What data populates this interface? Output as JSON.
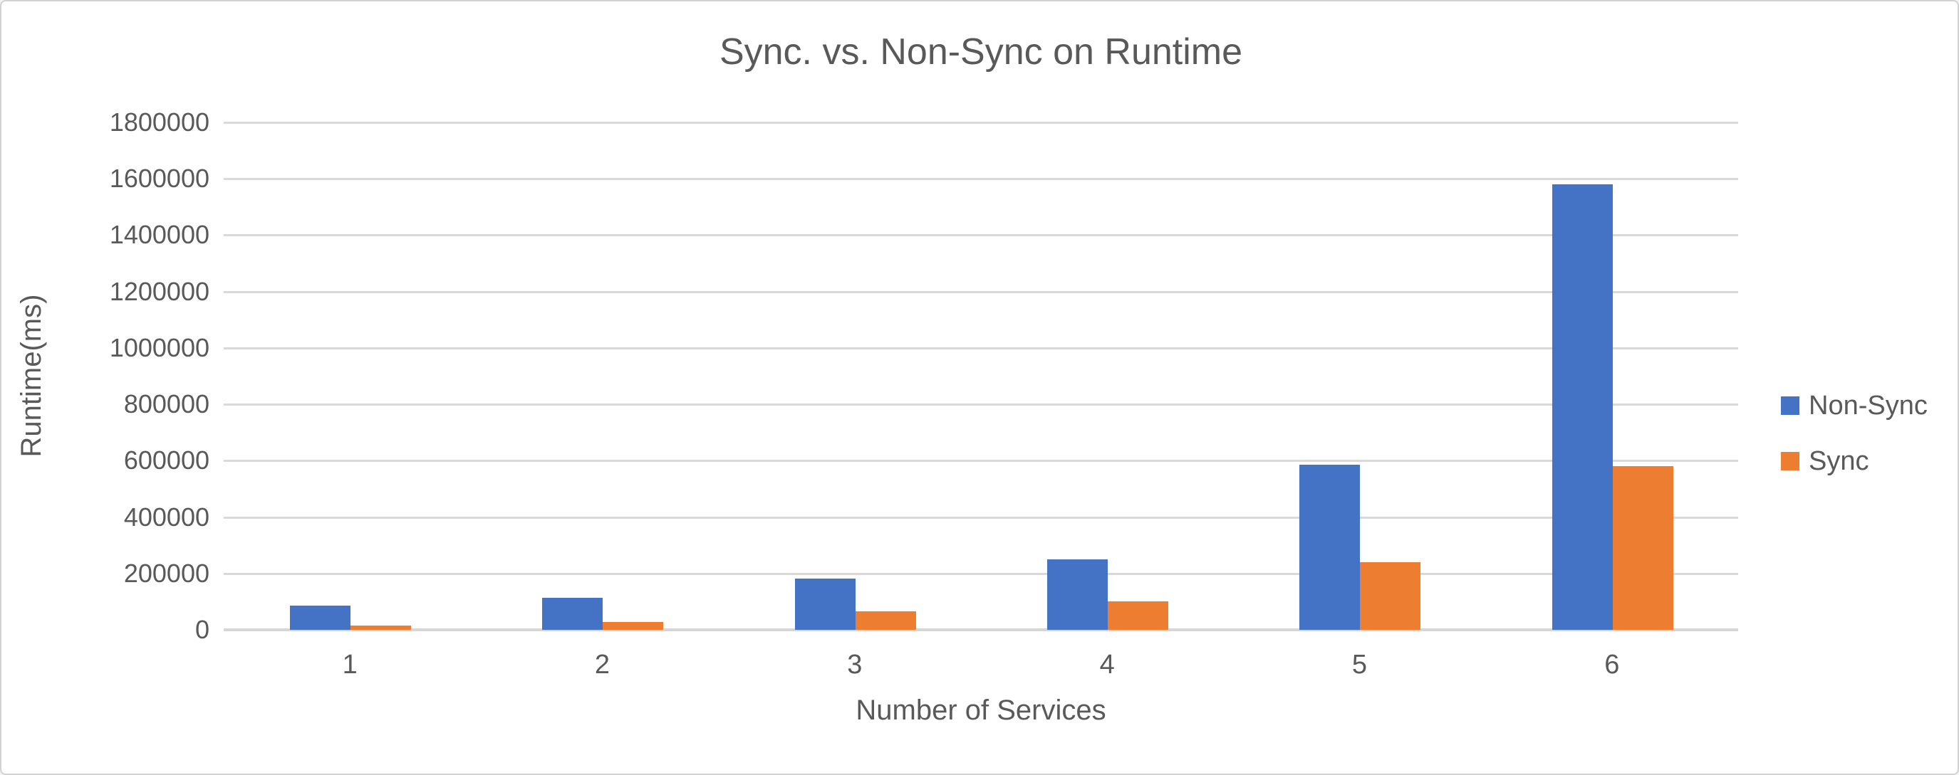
{
  "title": "Sync. vs. Non-Sync on Runtime",
  "chart_data": {
    "type": "bar",
    "title": "Sync. vs. Non-Sync on Runtime",
    "categories": [
      "1",
      "2",
      "3",
      "4",
      "5",
      "6"
    ],
    "series": [
      {
        "name": "Non-Sync",
        "color": "#4472C4",
        "values": [
          86000,
          113000,
          182000,
          251000,
          585000,
          1580000
        ]
      },
      {
        "name": "Sync",
        "color": "#ED7D31",
        "values": [
          14000,
          28000,
          66000,
          100000,
          240000,
          580000
        ]
      }
    ],
    "xlabel": "Number of Services",
    "ylabel": "Runtime(ms)",
    "ylim": [
      0,
      1800000
    ],
    "ytick_step": 200000,
    "yticks": [
      "0",
      "200000",
      "400000",
      "600000",
      "800000",
      "1000000",
      "1200000",
      "1400000",
      "1600000",
      "1800000"
    ],
    "grid": true,
    "legend_position": "right",
    "colors": {
      "text": "#595959",
      "gridline": "#D9D9D9",
      "axis_line": "#D6D6D6",
      "background": "#FFFFFF",
      "border": "#D2D2D2"
    }
  }
}
